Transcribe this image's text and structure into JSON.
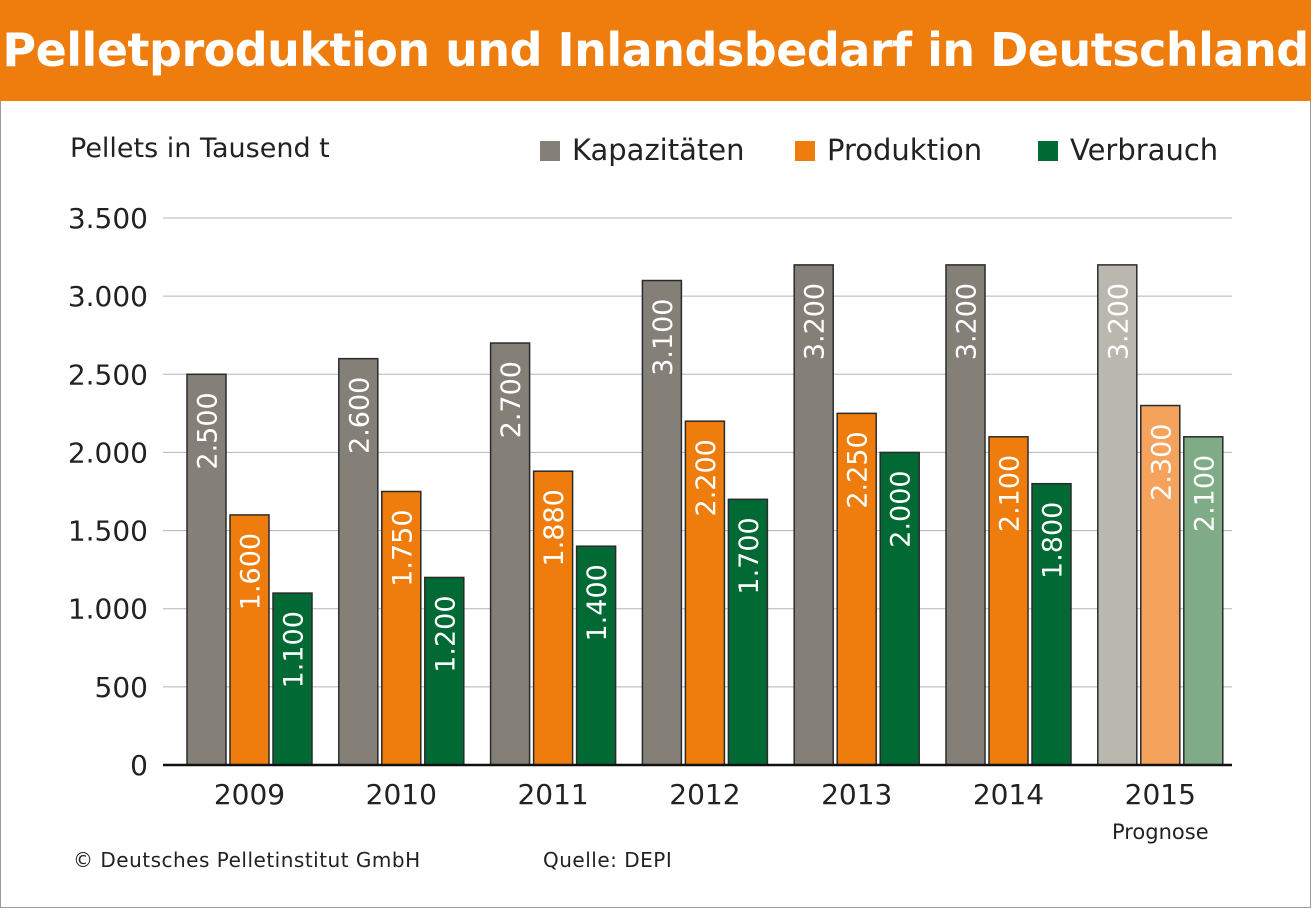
{
  "chart_data": {
    "type": "bar",
    "title": "Pelletproduktion und Inlandsbedarf in Deutschland",
    "ylabel": "Pellets in Tausend t",
    "xlabel": "",
    "ylim": [
      0,
      3500
    ],
    "yticks": [
      0,
      500,
      1000,
      1500,
      2000,
      2500,
      3000,
      3500
    ],
    "ytick_labels": [
      "0",
      "500",
      "1.000",
      "1.500",
      "2.000",
      "2.500",
      "3.000",
      "3.500"
    ],
    "categories": [
      "2009",
      "2010",
      "2011",
      "2012",
      "2013",
      "2014",
      "2015"
    ],
    "category_notes": {
      "2015": "Prognose"
    },
    "forecast_category": "2015",
    "legend_position": "top-right",
    "grid": true,
    "series": [
      {
        "name": "Kapazitäten",
        "color": "#847f77",
        "forecast_color": "#b9b7ae",
        "values": [
          2500,
          2600,
          2700,
          3100,
          3200,
          3200,
          3200
        ],
        "labels": [
          "2.500",
          "2.600",
          "2.700",
          "3.100",
          "3.200",
          "3.200",
          "3.200"
        ]
      },
      {
        "name": "Produktion",
        "color": "#ef7d0e",
        "forecast_color": "#f4a25c",
        "values": [
          1600,
          1750,
          1880,
          2200,
          2250,
          2100,
          2300
        ],
        "labels": [
          "1.600",
          "1.750",
          "1.880",
          "2.200",
          "2.250",
          "2.100",
          "2.300"
        ]
      },
      {
        "name": "Verbrauch",
        "color": "#006934",
        "forecast_color": "#7fab86",
        "values": [
          1100,
          1200,
          1400,
          1700,
          2000,
          1800,
          2100
        ],
        "labels": [
          "1.100",
          "1.200",
          "1.400",
          "1.700",
          "2.000",
          "1.800",
          "2.100"
        ]
      }
    ]
  },
  "footer": {
    "copyright": "© Deutsches Pelletinstitut GmbH",
    "source": "Quelle: DEPI"
  }
}
